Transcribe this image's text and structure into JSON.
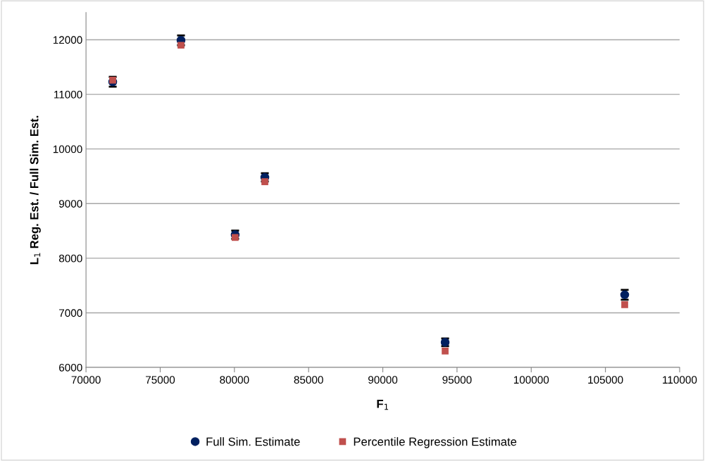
{
  "chart_data": {
    "type": "scatter",
    "xlabel": "F$_{1}$",
    "ylabel": "L$_{1}$ Reg. Est. / Full Sim. Est.",
    "x": [
      71800,
      76400,
      80050,
      82050,
      94200,
      106300
    ],
    "series": [
      {
        "name": "Full Sim. Estimate",
        "color": "#002060",
        "marker": "circle",
        "values": [
          11230,
          11990,
          8430,
          9480,
          6460,
          7330
        ],
        "errors": [
          90,
          90,
          75,
          75,
          70,
          90
        ]
      },
      {
        "name": "Percentile Regression Estimate",
        "color": "#c0504d",
        "marker": "square",
        "values": [
          11260,
          11900,
          8380,
          9400,
          6300,
          7150
        ]
      }
    ],
    "xlim": [
      70000,
      110000
    ],
    "xticks": [
      70000,
      75000,
      80000,
      85000,
      90000,
      95000,
      100000,
      105000,
      110000
    ],
    "ylim": [
      6000,
      12500
    ],
    "yticks": [
      6000,
      7000,
      8000,
      9000,
      10000,
      11000,
      12000
    ],
    "grid": "y",
    "legend": "bottom"
  }
}
